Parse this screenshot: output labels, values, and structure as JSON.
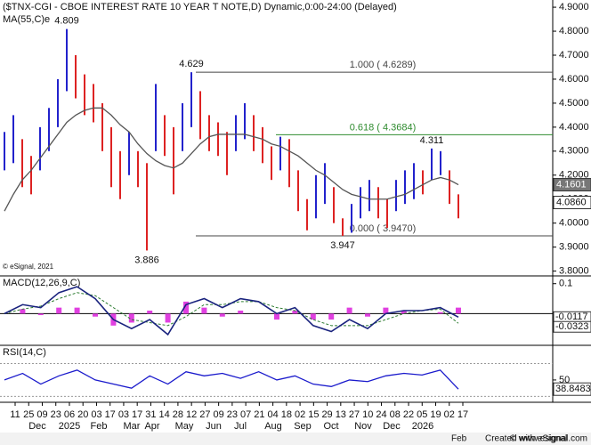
{
  "chart_data": [
    {
      "type": "ohlc",
      "title": "($TNX-CGI - CBOE INTEREST RATE 10 YEAR T NOTE,D) Dynamic,0:00-24:00 (Delayed)",
      "watermark": "© eSignal, 2021",
      "up_color": "#2222cc",
      "down_color": "#dd2222",
      "high": [
        4.38,
        4.45,
        4.35,
        4.28,
        4.4,
        4.48,
        4.6,
        4.809,
        4.7,
        4.62,
        4.58,
        4.5,
        4.4,
        4.3,
        4.38,
        4.3,
        4.25,
        4.58,
        4.45,
        4.4,
        4.5,
        4.629,
        4.55,
        4.45,
        4.42,
        4.38,
        4.45,
        4.5,
        4.45,
        4.4,
        4.32,
        4.36,
        4.35,
        4.22,
        4.1,
        4.2,
        4.25,
        4.15,
        4.02,
        4.08,
        4.15,
        4.18,
        4.15,
        4.1,
        4.18,
        4.22,
        4.25,
        4.22,
        4.311,
        4.3,
        4.22,
        4.12
      ],
      "low": [
        4.22,
        4.25,
        4.15,
        4.12,
        4.22,
        4.3,
        4.4,
        4.55,
        4.52,
        4.45,
        4.42,
        4.3,
        4.15,
        4.1,
        4.2,
        4.15,
        3.886,
        4.3,
        4.28,
        4.12,
        4.3,
        4.4,
        4.35,
        4.3,
        4.28,
        4.2,
        4.3,
        4.35,
        4.3,
        4.25,
        4.18,
        4.22,
        4.15,
        4.05,
        3.97,
        4.02,
        4.08,
        4.0,
        3.947,
        3.96,
        4.02,
        4.05,
        4.02,
        3.98,
        4.05,
        4.08,
        4.1,
        4.12,
        4.18,
        4.2,
        4.08,
        4.02
      ],
      "ma": {
        "name": "MA(55,C)e",
        "color": "#555555",
        "values": [
          4.05,
          4.12,
          4.18,
          4.22,
          4.27,
          4.32,
          4.37,
          4.42,
          4.45,
          4.47,
          4.48,
          4.48,
          4.45,
          4.41,
          4.38,
          4.33,
          4.29,
          4.26,
          4.24,
          4.23,
          4.25,
          4.29,
          4.33,
          4.36,
          4.37,
          4.37,
          4.37,
          4.37,
          4.36,
          4.35,
          4.33,
          4.32,
          4.3,
          4.28,
          4.25,
          4.22,
          4.2,
          4.17,
          4.14,
          4.12,
          4.11,
          4.1,
          4.1,
          4.1,
          4.11,
          4.12,
          4.14,
          4.16,
          4.18,
          4.19,
          4.18,
          4.16
        ]
      },
      "annotations": [
        4.809,
        4.629,
        3.886,
        3.947,
        4.311
      ],
      "fib": [
        {
          "label": "1.000 ( 4.6289)",
          "value": 4.6289,
          "color": "#444444"
        },
        {
          "label": "0.618 ( 4.3684)",
          "value": 4.3684,
          "color": "#2e8b2e"
        },
        {
          "label": "0.000 ( 3.9470)",
          "value": 3.947,
          "color": "#444444"
        }
      ],
      "last_values": [
        {
          "value": 4.1601,
          "label": "4.1601",
          "color": "#777777"
        },
        {
          "value": 4.086,
          "label": "4.0860",
          "color": "#ffffff"
        }
      ],
      "ylim": [
        3.78,
        4.93
      ],
      "yticks": [
        {
          "value": 3.8,
          "label": "3.8000"
        },
        {
          "value": 3.9,
          "label": "3.9000"
        },
        {
          "value": 4.0,
          "label": "4.0000"
        },
        {
          "value": 4.1,
          "label": "4.1000"
        },
        {
          "value": 4.2,
          "label": "4.2000"
        },
        {
          "value": 4.3,
          "label": "4.3000"
        },
        {
          "value": 4.4,
          "label": "4.4000"
        },
        {
          "value": 4.5,
          "label": "4.5000"
        },
        {
          "value": 4.6,
          "label": "4.6000"
        },
        {
          "value": 4.7,
          "label": "4.7000"
        },
        {
          "value": 4.8,
          "label": "4.8000"
        },
        {
          "value": 4.9,
          "label": "4.9000"
        }
      ]
    },
    {
      "type": "macd",
      "name": "MACD(12,26,9,C)",
      "series": [
        {
          "name": "macd",
          "color": "#1a237e",
          "values": [
            0.0,
            0.03,
            0.02,
            0.07,
            0.09,
            0.05,
            -0.02,
            -0.05,
            -0.02,
            -0.07,
            0.03,
            0.05,
            0.02,
            0.05,
            0.04,
            0.0,
            0.02,
            -0.04,
            -0.06,
            -0.02,
            -0.05,
            0.0,
            0.01,
            0.01,
            0.02,
            -0.0117
          ]
        },
        {
          "name": "signal",
          "color": "#2e7d32",
          "values": [
            0.0,
            0.015,
            0.025,
            0.05,
            0.07,
            0.06,
            0.02,
            -0.02,
            -0.03,
            -0.04,
            -0.01,
            0.03,
            0.03,
            0.04,
            0.04,
            0.02,
            0.01,
            -0.02,
            -0.04,
            -0.04,
            -0.04,
            -0.02,
            0.0,
            0.01,
            0.015,
            -0.0323
          ]
        },
        {
          "name": "histogram",
          "color": "#e040e0",
          "values": [
            0.0,
            0.015,
            -0.005,
            0.02,
            0.02,
            -0.01,
            -0.04,
            -0.03,
            0.01,
            -0.03,
            0.04,
            0.02,
            -0.01,
            0.01,
            0.0,
            -0.02,
            0.01,
            -0.02,
            -0.02,
            0.02,
            -0.01,
            0.02,
            0.01,
            0.0,
            0.005,
            0.02
          ]
        }
      ],
      "last_values": [
        -0.0117,
        -0.0323
      ],
      "ylim": [
        -0.1,
        0.12
      ],
      "yticks": [
        0.1
      ]
    },
    {
      "type": "rsi",
      "name": "RSI(14,C)",
      "color": "#1a1acc",
      "values": [
        50,
        58,
        45,
        55,
        62,
        50,
        45,
        40,
        55,
        45,
        60,
        55,
        58,
        52,
        60,
        50,
        55,
        45,
        42,
        50,
        48,
        55,
        58,
        56,
        62,
        38.8483
      ],
      "levels": [
        30,
        70
      ],
      "last_values": [
        38.8483
      ],
      "ylim": [
        25,
        90
      ],
      "yticks": [
        50
      ]
    }
  ],
  "x_axis": {
    "days": [
      "11",
      "25",
      "09",
      "23",
      "06",
      "20",
      "03",
      "17",
      "03",
      "17",
      "31",
      "14",
      "28",
      "12",
      "27",
      "09",
      "23",
      "07",
      "21",
      "04",
      "18",
      "02",
      "15",
      "29",
      "13",
      "27",
      "10",
      "24",
      "08",
      "22",
      "05",
      "19",
      "02",
      "17"
    ],
    "months": [
      "Dec",
      "2025",
      "Feb",
      "Mar",
      "Apr",
      "May",
      "Jun",
      "Jul",
      "Aug",
      "Sep",
      "Oct",
      "Nov",
      "Dec",
      "2026",
      "Feb"
    ]
  },
  "footer": {
    "month": "Feb",
    "created": "Created with eSignal",
    "site": "© www.esignal.com"
  }
}
